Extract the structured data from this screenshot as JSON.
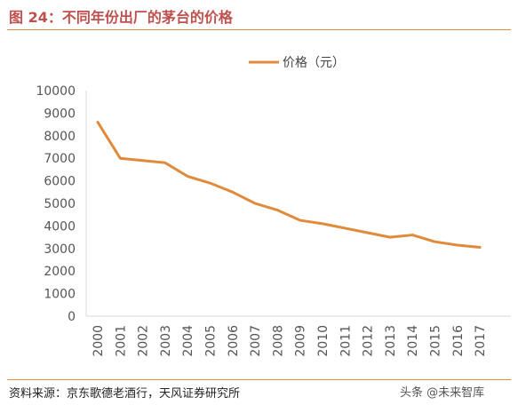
{
  "figure": {
    "title": "图 24：不同年份出厂的茅台的价格",
    "source": "资料来源：京东歌德老酒行，天风证券研究所",
    "watermark": "头条 @未来智库"
  },
  "colors": {
    "accent": "#e08a3c",
    "title": "#c0504d",
    "line": "#e08a3c"
  },
  "chart_data": {
    "type": "line",
    "title": "",
    "xlabel": "",
    "ylabel": "",
    "categories": [
      "2000",
      "2001",
      "2002",
      "2003",
      "2004",
      "2005",
      "2006",
      "2007",
      "2008",
      "2009",
      "2010",
      "2011",
      "2012",
      "2013",
      "2014",
      "2015",
      "2016",
      "2017"
    ],
    "series": [
      {
        "name": "价格（元）",
        "values": [
          8600,
          7000,
          6900,
          6800,
          6200,
          5900,
          5500,
          5000,
          4700,
          4250,
          4100,
          3900,
          3700,
          3500,
          3600,
          3300,
          3150,
          3050
        ]
      }
    ],
    "ylim": [
      0,
      10000
    ],
    "yticks": [
      0,
      1000,
      2000,
      3000,
      4000,
      5000,
      6000,
      7000,
      8000,
      9000,
      10000
    ],
    "grid": false,
    "legend": "top-center"
  }
}
